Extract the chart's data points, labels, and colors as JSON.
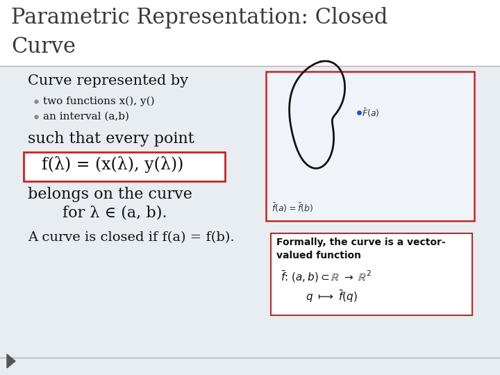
{
  "title_line1": "Parametric Representation: Closed",
  "title_line2": "Curve",
  "title_fontsize": 22,
  "title_color": "#3a3a3a",
  "slide_bg": "#ffffff",
  "body_bg": "#e8edf2",
  "separator_color": "#b0b0b0",
  "text_color": "#111111",
  "bullet_color": "#888888",
  "red_box_color": "#cc2222",
  "line1": "Curve represented by",
  "bullet1": "two functions x(), y()",
  "bullet2": "an interval (a,b)",
  "line2": "such that every point",
  "formula": "f(λ) = (x(λ), y(λ))",
  "line3": "belongs on the curve",
  "line4": "for λ ∈ (a, b).",
  "line5": "A curve is closed if f(a) = f(b).",
  "note_title": "Formally, the curve is a vector-\nvalued function",
  "sketch_label_bottom": "$\\bar{f}(a)=\\bar{f}(b)$",
  "sketch_label_dot": "$\\bar{f}(a)$"
}
